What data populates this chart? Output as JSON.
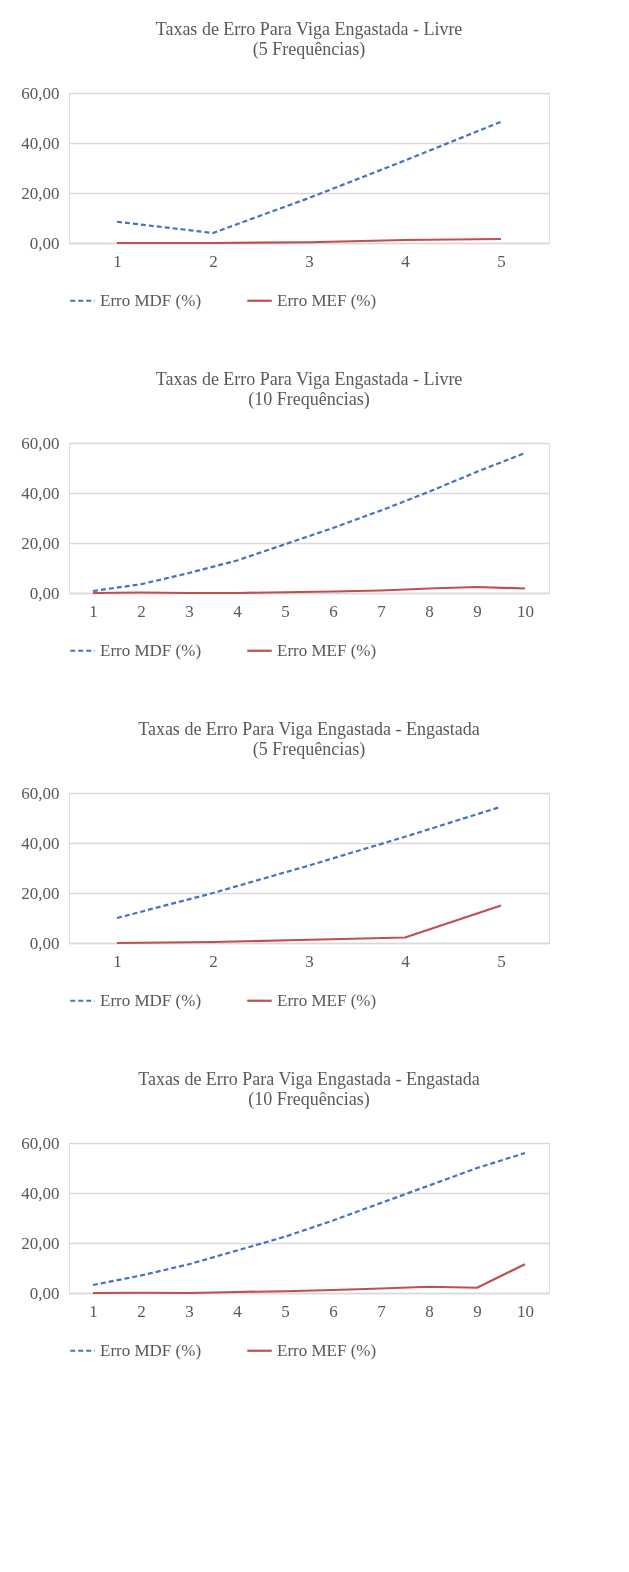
{
  "chart_data": [
    {
      "type": "line",
      "title": "Taxas de Erro Para Viga Engastada - Livre\n(5 Frequências)",
      "categories": [
        "1",
        "2",
        "3",
        "4",
        "5"
      ],
      "ylim": [
        0,
        60
      ],
      "yticks": [
        {
          "value": 0,
          "label": "0,00"
        },
        {
          "value": 20,
          "label": "20,00"
        },
        {
          "value": 40,
          "label": "40,00"
        },
        {
          "value": 60,
          "label": "60,00"
        }
      ],
      "grid": "y",
      "legend": "bottom",
      "series": [
        {
          "name": "Erro MDF (%)",
          "color": "#4472c4",
          "line_style": "dashed",
          "values": [
            8.5,
            4,
            18,
            33,
            48.5
          ]
        },
        {
          "name": "Erro MEF (%)",
          "color": "#c0504d",
          "line_style": "solid",
          "values": [
            0,
            0,
            0.3,
            1.2,
            1.6
          ]
        }
      ]
    },
    {
      "type": "line",
      "title": "Taxas de Erro Para Viga Engastada - Livre\n(10 Frequências)",
      "categories": [
        "1",
        "2",
        "3",
        "4",
        "5",
        "6",
        "7",
        "8",
        "9",
        "10"
      ],
      "ylim": [
        0,
        60
      ],
      "yticks": [
        {
          "value": 0,
          "label": "0,00"
        },
        {
          "value": 20,
          "label": "20,00"
        },
        {
          "value": 40,
          "label": "40,00"
        },
        {
          "value": 60,
          "label": "60,00"
        }
      ],
      "grid": "y",
      "legend": "bottom",
      "series": [
        {
          "name": "Erro MDF (%)",
          "color": "#4472c4",
          "line_style": "dashed",
          "values": [
            0.8,
            3.5,
            8,
            13,
            19.5,
            26,
            33,
            40.5,
            48.5,
            56
          ]
        },
        {
          "name": "Erro MEF (%)",
          "color": "#c0504d",
          "line_style": "solid",
          "values": [
            0,
            0.2,
            0,
            0,
            0.3,
            0.6,
            1,
            1.8,
            2.4,
            1.8
          ]
        }
      ]
    },
    {
      "type": "line",
      "title": "Taxas de Erro Para Viga Engastada - Engastada\n(5 Frequências)",
      "categories": [
        "1",
        "2",
        "3",
        "4",
        "5"
      ],
      "ylim": [
        0,
        60
      ],
      "yticks": [
        {
          "value": 0,
          "label": "0,00"
        },
        {
          "value": 20,
          "label": "20,00"
        },
        {
          "value": 40,
          "label": "40,00"
        },
        {
          "value": 60,
          "label": "60,00"
        }
      ],
      "grid": "y",
      "legend": "bottom",
      "series": [
        {
          "name": "Erro MDF (%)",
          "color": "#4472c4",
          "line_style": "dashed",
          "values": [
            10,
            20,
            31,
            42.5,
            54.5
          ]
        },
        {
          "name": "Erro MEF (%)",
          "color": "#c0504d",
          "line_style": "solid",
          "values": [
            0,
            0.4,
            1.3,
            2.2,
            15
          ]
        }
      ]
    },
    {
      "type": "line",
      "title": "Taxas de Erro Para Viga Engastada - Engastada\n(10 Frequências)",
      "categories": [
        "1",
        "2",
        "3",
        "4",
        "5",
        "6",
        "7",
        "8",
        "9",
        "10"
      ],
      "ylim": [
        0,
        60
      ],
      "yticks": [
        {
          "value": 0,
          "label": "0,00"
        },
        {
          "value": 20,
          "label": "20,00"
        },
        {
          "value": 40,
          "label": "40,00"
        },
        {
          "value": 60,
          "label": "60,00"
        }
      ],
      "grid": "y",
      "legend": "bottom",
      "series": [
        {
          "name": "Erro MDF (%)",
          "color": "#4472c4",
          "line_style": "dashed",
          "values": [
            3.2,
            7,
            11.5,
            17,
            22.5,
            29,
            36,
            43,
            50,
            56
          ]
        },
        {
          "name": "Erro MEF (%)",
          "color": "#c0504d",
          "line_style": "solid",
          "values": [
            0,
            0.1,
            0,
            0.4,
            0.7,
            1.2,
            1.8,
            2.5,
            2.1,
            11.5
          ]
        }
      ]
    }
  ]
}
